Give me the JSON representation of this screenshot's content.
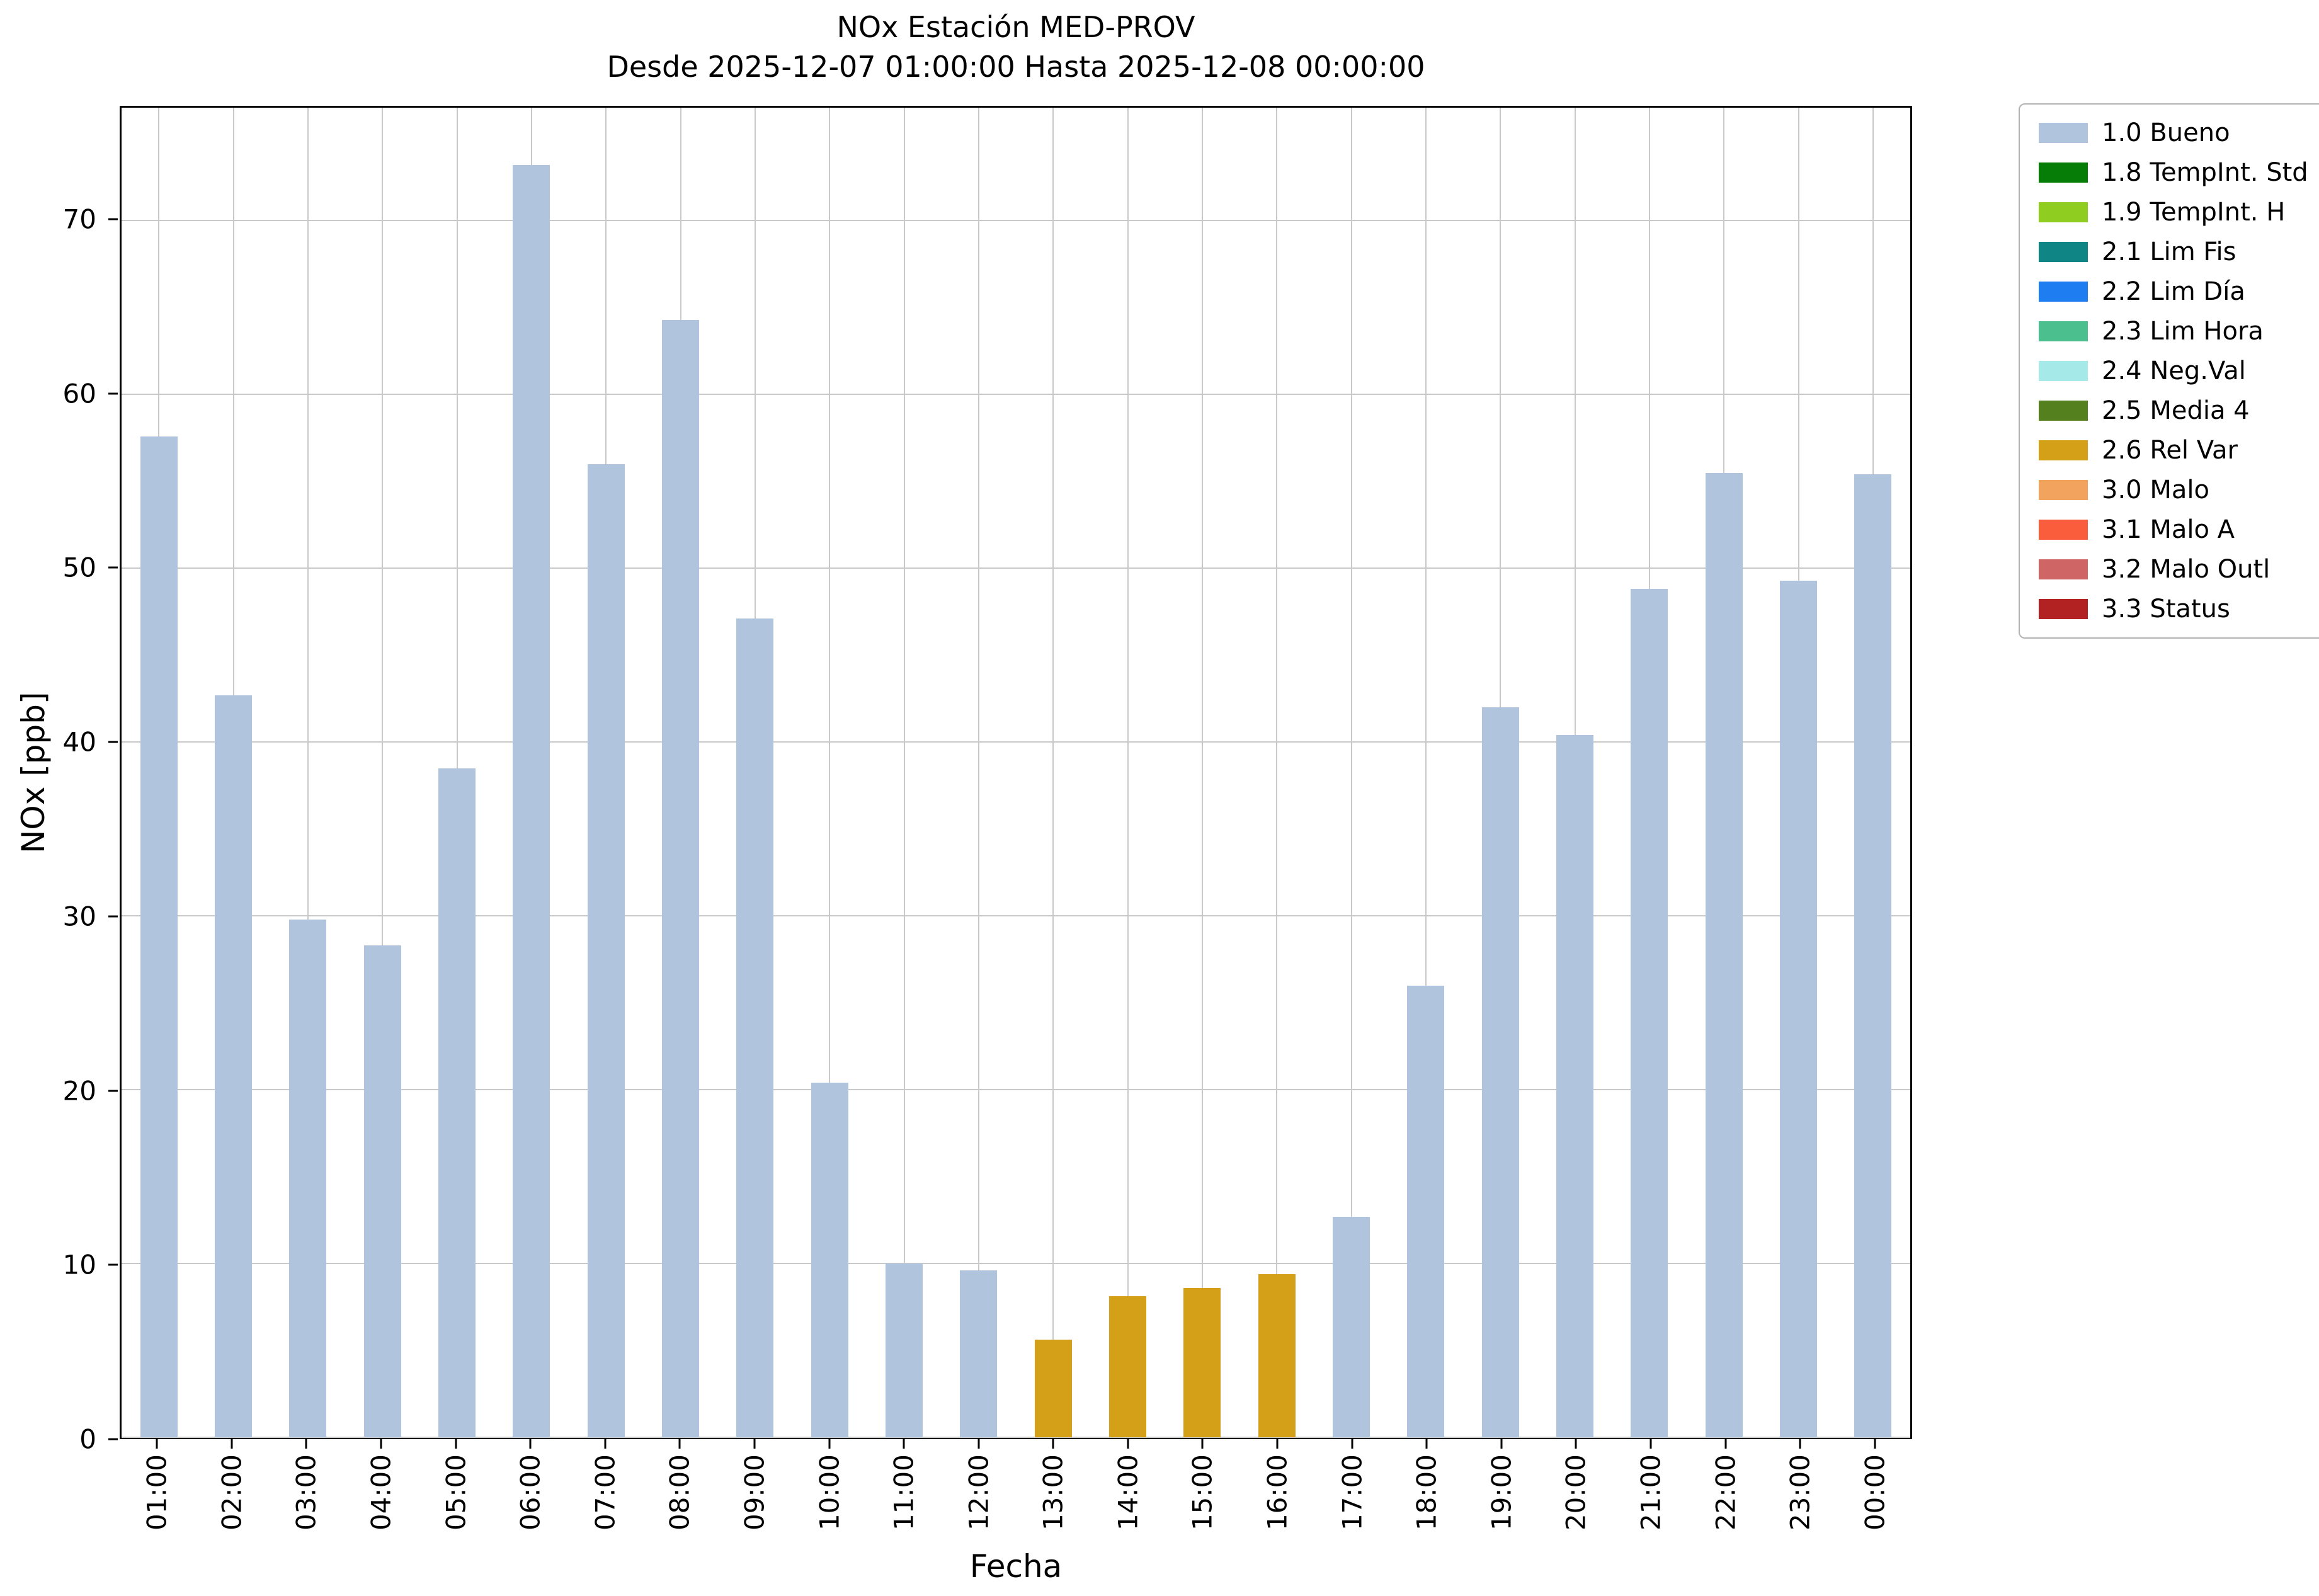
{
  "chart": {
    "title": "NOx Estación MED-PROV",
    "subtitle": "Desde 2025-12-07 01:00:00 Hasta 2025-12-08 00:00:00",
    "xlabel": "Fecha",
    "ylabel": "NOx [ppb]"
  },
  "chart_data": {
    "type": "bar",
    "title": "NOx Estación MED-PROV",
    "subtitle": "Desde 2025-12-07 01:00:00 Hasta 2025-12-08 00:00:00",
    "xlabel": "Fecha",
    "ylabel": "NOx [ppb]",
    "categories": [
      "01:00",
      "02:00",
      "03:00",
      "04:00",
      "05:00",
      "06:00",
      "07:00",
      "08:00",
      "09:00",
      "10:00",
      "11:00",
      "12:00",
      "13:00",
      "14:00",
      "15:00",
      "16:00",
      "17:00",
      "18:00",
      "19:00",
      "20:00",
      "21:00",
      "22:00",
      "23:00",
      "00:00"
    ],
    "values": [
      57.6,
      42.7,
      29.8,
      28.3,
      38.5,
      73.2,
      56.0,
      64.3,
      47.1,
      20.4,
      10.0,
      9.6,
      5.6,
      8.1,
      8.6,
      9.4,
      12.7,
      26.0,
      42.0,
      40.4,
      48.8,
      55.5,
      49.3,
      55.4
    ],
    "statuses": [
      "1.0",
      "1.0",
      "1.0",
      "1.0",
      "1.0",
      "1.0",
      "1.0",
      "1.0",
      "1.0",
      "1.0",
      "1.0",
      "1.0",
      "2.6",
      "2.6",
      "2.6",
      "2.6",
      "1.0",
      "1.0",
      "1.0",
      "1.0",
      "1.0",
      "1.0",
      "1.0",
      "1.0"
    ],
    "status_colors": {
      "1.0": "#b0c4de",
      "2.6": "#d4a017"
    },
    "yticks": [
      0,
      10,
      20,
      30,
      40,
      50,
      60,
      70
    ],
    "ylim": [
      0,
      76.5
    ],
    "grid": true,
    "legend_position": "outside upper right",
    "legend": [
      {
        "label": "1.0 Bueno",
        "color": "#b0c4de"
      },
      {
        "label": "1.8 TempInt. Std",
        "color": "#067d06"
      },
      {
        "label": "1.9 TempInt. H",
        "color": "#8fce20"
      },
      {
        "label": "2.1 Lim Fis",
        "color": "#0f8585"
      },
      {
        "label": "2.2 Lim Día",
        "color": "#1e7df0"
      },
      {
        "label": "2.3 Lim Hora",
        "color": "#4cbf8e"
      },
      {
        "label": "2.4 Neg.Val",
        "color": "#a5e9e9"
      },
      {
        "label": "2.5 Media 4",
        "color": "#55801e"
      },
      {
        "label": "2.6 Rel Var",
        "color": "#d4a017"
      },
      {
        "label": "3.0 Malo",
        "color": "#f2a45f"
      },
      {
        "label": "3.1 Malo A",
        "color": "#f95d3c"
      },
      {
        "label": "3.2 Malo Outl",
        "color": "#cf6565"
      },
      {
        "label": "3.3 Status",
        "color": "#b22222"
      }
    ]
  }
}
